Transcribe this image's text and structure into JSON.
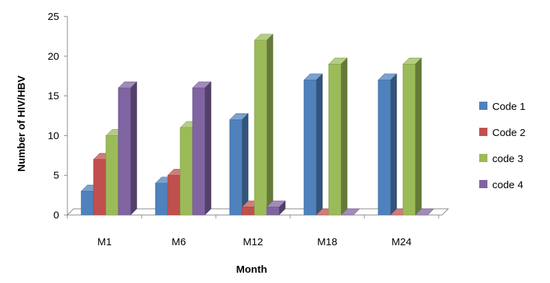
{
  "chart_data": {
    "type": "bar",
    "style": "3d-clustered-column",
    "categories": [
      "M1",
      "M6",
      "M12",
      "M18",
      "M24"
    ],
    "series": [
      {
        "name": "Code 1",
        "color": "#4F81BD",
        "values": [
          3,
          4,
          12,
          17,
          17
        ]
      },
      {
        "name": "Code 2",
        "color": "#C0504D",
        "values": [
          7,
          5,
          1,
          0,
          0
        ]
      },
      {
        "name": "code 3",
        "color": "#9BBB59",
        "values": [
          10,
          11,
          22,
          19,
          19
        ]
      },
      {
        "name": "code 4",
        "color": "#8064A2",
        "values": [
          16,
          16,
          1,
          0,
          0
        ]
      }
    ],
    "xlabel": "Month",
    "ylabel": "Number of HIV/HBV",
    "ylim": [
      0,
      25
    ],
    "yticks": [
      0,
      5,
      10,
      15,
      20,
      25
    ],
    "grid": false,
    "legend_position": "right"
  }
}
